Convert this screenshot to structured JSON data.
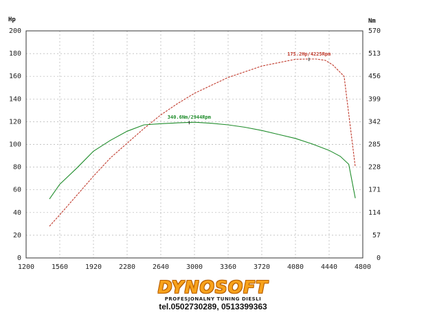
{
  "chart_data": {
    "type": "line",
    "title": "",
    "left_axis_unit": "Hp",
    "right_axis_unit": "Nm",
    "x_ticks": [
      1200,
      1560,
      1920,
      2280,
      2640,
      3000,
      3360,
      3720,
      4080,
      4440,
      4800
    ],
    "xlim": [
      1200,
      4800
    ],
    "y_left_ticks": [
      0,
      20,
      40,
      60,
      80,
      100,
      120,
      140,
      160,
      180,
      200
    ],
    "y_left_lim": [
      0,
      200
    ],
    "y_right_ticks": [
      0,
      57,
      114,
      171,
      228,
      285,
      342,
      399,
      456,
      513,
      570
    ],
    "y_right_lim": [
      0,
      570
    ],
    "grid": true,
    "series": [
      {
        "axis": "left",
        "color": "#c0392b",
        "x": [
          1450,
          1560,
          1740,
          1920,
          2100,
          2280,
          2460,
          2640,
          2820,
          3000,
          3180,
          3360,
          3540,
          3720,
          3900,
          4080,
          4225,
          4300,
          4400,
          4480,
          4600,
          4720
        ],
        "y": [
          28,
          38,
          55,
          72,
          88,
          101,
          114,
          126,
          136,
          145,
          152,
          159,
          164,
          169,
          172,
          175,
          175.2,
          175.2,
          174,
          170,
          160,
          80
        ]
      },
      {
        "axis": "right",
        "color": "#1e8c2a",
        "x": [
          1450,
          1560,
          1740,
          1920,
          2100,
          2280,
          2460,
          2640,
          2820,
          3000,
          3180,
          3360,
          3540,
          3720,
          3900,
          4080,
          4260,
          4440,
          4560,
          4650,
          4720
        ],
        "y": [
          148,
          185,
          225,
          268,
          295,
          318,
          334,
          337,
          339,
          340.6,
          338,
          334,
          328,
          320,
          310,
          300,
          286,
          270,
          255,
          235,
          150
        ]
      }
    ],
    "annotations": [
      {
        "text": "175.2Hp/4225Rpm",
        "x": 4225,
        "y": 175.2,
        "axis": "left",
        "color": "#c0392b"
      },
      {
        "text": "340.6Nm/2944Rpm",
        "x": 2944,
        "y": 340.6,
        "axis": "right",
        "color": "#1e8c2a"
      }
    ]
  },
  "footer": {
    "brand_logo": "DYNOSOFT",
    "tagline": "PROFESJONALNY TUNING DIESLI",
    "phone": "tel.0502730289, 0513399363"
  }
}
